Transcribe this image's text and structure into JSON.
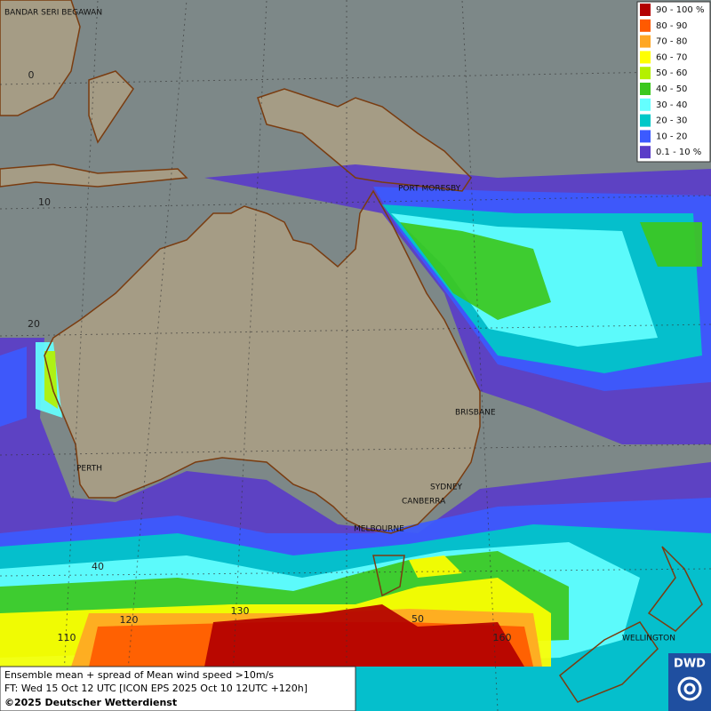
{
  "legend": {
    "entries": [
      {
        "label": "90 - 100 %",
        "color": "#b30000"
      },
      {
        "label": "80 - 90",
        "color": "#ff5a00"
      },
      {
        "label": "70 - 80",
        "color": "#ffa724"
      },
      {
        "label": "60 - 70",
        "color": "#ffff00"
      },
      {
        "label": "50 - 60",
        "color": "#b4f000"
      },
      {
        "label": "40 - 50",
        "color": "#3cc81e"
      },
      {
        "label": "30 - 40",
        "color": "#64ffff"
      },
      {
        "label": "20 - 30",
        "color": "#00c8c8"
      },
      {
        "label": "10 - 20",
        "color": "#3c5aff"
      },
      {
        "label": "0.1 - 10 %",
        "color": "#5a3cc8"
      }
    ]
  },
  "cities": [
    "BANDAR SERI BEGAWAN",
    "PORT MORESBY",
    "BRISBANE",
    "PERTH",
    "SYDNEY",
    "CANBERRA",
    "MELBOURNE",
    "WELLINGTON"
  ],
  "grid_labels": [
    "0",
    "10",
    "20",
    "40",
    "50",
    "110",
    "120",
    "130",
    "160"
  ],
  "caption": {
    "line1": "Ensemble mean + spread of Mean wind speed >10m/s",
    "line2": "FT: Wed 15 Oct 12 UTC [ICON EPS 2025 Oct 10 12UTC +120h]",
    "line3": "©2025 Deutscher Wetterdienst"
  },
  "logo": "DWD"
}
